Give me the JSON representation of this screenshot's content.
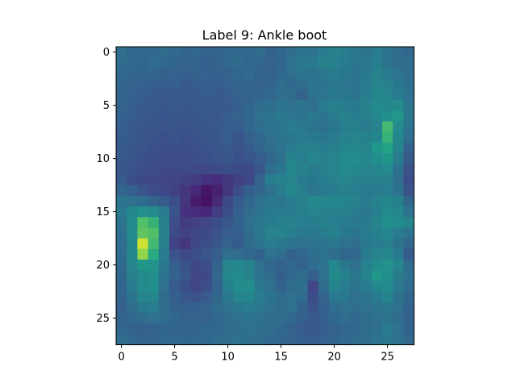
{
  "chart_data": {
    "type": "heatmap",
    "title": "Label 9: Ankle boot",
    "xlabel": "",
    "ylabel": "",
    "colormap": "viridis",
    "rows": 28,
    "cols": 28,
    "xlim": [
      -0.5,
      27.5
    ],
    "ylim": [
      27.5,
      -0.5
    ],
    "x_ticks": [
      0,
      5,
      10,
      15,
      20,
      25
    ],
    "y_ticks": [
      0,
      5,
      10,
      15,
      20,
      25
    ],
    "x_tick_labels": [
      "0",
      "5",
      "10",
      "15",
      "20",
      "25"
    ],
    "y_tick_labels": [
      "0",
      "5",
      "10",
      "15",
      "20",
      "25"
    ],
    "grid": false,
    "value_range": [
      0,
      1
    ],
    "values": [
      [
        0.45,
        0.42,
        0.43,
        0.42,
        0.44,
        0.43,
        0.41,
        0.42,
        0.4,
        0.41,
        0.42,
        0.43,
        0.42,
        0.44,
        0.4,
        0.42,
        0.45,
        0.48,
        0.47,
        0.52,
        0.55,
        0.53,
        0.5,
        0.48,
        0.52,
        0.47,
        0.44,
        0.43
      ],
      [
        0.44,
        0.43,
        0.42,
        0.44,
        0.43,
        0.41,
        0.4,
        0.41,
        0.38,
        0.4,
        0.42,
        0.44,
        0.43,
        0.42,
        0.39,
        0.41,
        0.47,
        0.5,
        0.51,
        0.55,
        0.54,
        0.52,
        0.49,
        0.5,
        0.53,
        0.48,
        0.45,
        0.44
      ],
      [
        0.43,
        0.42,
        0.41,
        0.42,
        0.4,
        0.39,
        0.38,
        0.4,
        0.39,
        0.38,
        0.4,
        0.43,
        0.44,
        0.41,
        0.4,
        0.43,
        0.46,
        0.49,
        0.48,
        0.5,
        0.52,
        0.5,
        0.48,
        0.51,
        0.55,
        0.52,
        0.47,
        0.45
      ],
      [
        0.42,
        0.4,
        0.39,
        0.38,
        0.37,
        0.38,
        0.36,
        0.37,
        0.38,
        0.37,
        0.39,
        0.41,
        0.42,
        0.4,
        0.41,
        0.44,
        0.42,
        0.45,
        0.48,
        0.47,
        0.5,
        0.49,
        0.47,
        0.52,
        0.56,
        0.55,
        0.5,
        0.46
      ],
      [
        0.41,
        0.39,
        0.37,
        0.36,
        0.35,
        0.36,
        0.35,
        0.36,
        0.37,
        0.36,
        0.37,
        0.4,
        0.4,
        0.42,
        0.43,
        0.45,
        0.44,
        0.4,
        0.47,
        0.49,
        0.51,
        0.5,
        0.48,
        0.53,
        0.58,
        0.57,
        0.52,
        0.47
      ],
      [
        0.4,
        0.38,
        0.36,
        0.35,
        0.34,
        0.35,
        0.34,
        0.35,
        0.36,
        0.35,
        0.36,
        0.38,
        0.41,
        0.44,
        0.45,
        0.47,
        0.46,
        0.48,
        0.45,
        0.52,
        0.54,
        0.52,
        0.5,
        0.55,
        0.6,
        0.58,
        0.6,
        0.49
      ],
      [
        0.39,
        0.37,
        0.35,
        0.34,
        0.33,
        0.34,
        0.33,
        0.34,
        0.35,
        0.34,
        0.37,
        0.4,
        0.43,
        0.46,
        0.48,
        0.5,
        0.49,
        0.47,
        0.5,
        0.48,
        0.52,
        0.55,
        0.53,
        0.54,
        0.58,
        0.62,
        0.66,
        0.5
      ],
      [
        0.38,
        0.36,
        0.34,
        0.33,
        0.32,
        0.33,
        0.32,
        0.33,
        0.34,
        0.35,
        0.38,
        0.36,
        0.42,
        0.45,
        0.47,
        0.49,
        0.52,
        0.5,
        0.48,
        0.46,
        0.5,
        0.53,
        0.54,
        0.52,
        0.55,
        0.8,
        0.6,
        0.48
      ],
      [
        0.37,
        0.35,
        0.33,
        0.32,
        0.31,
        0.32,
        0.31,
        0.32,
        0.33,
        0.34,
        0.37,
        0.33,
        0.4,
        0.43,
        0.46,
        0.48,
        0.5,
        0.52,
        0.5,
        0.49,
        0.52,
        0.55,
        0.56,
        0.54,
        0.57,
        0.78,
        0.58,
        0.46
      ],
      [
        0.36,
        0.34,
        0.32,
        0.31,
        0.3,
        0.3,
        0.3,
        0.31,
        0.32,
        0.33,
        0.35,
        0.32,
        0.36,
        0.41,
        0.44,
        0.47,
        0.52,
        0.54,
        0.55,
        0.53,
        0.54,
        0.57,
        0.58,
        0.56,
        0.66,
        0.72,
        0.56,
        0.4
      ],
      [
        0.35,
        0.33,
        0.31,
        0.3,
        0.29,
        0.29,
        0.29,
        0.3,
        0.31,
        0.32,
        0.34,
        0.31,
        0.33,
        0.36,
        0.42,
        0.46,
        0.56,
        0.53,
        0.57,
        0.55,
        0.56,
        0.59,
        0.6,
        0.58,
        0.62,
        0.66,
        0.52,
        0.36
      ],
      [
        0.34,
        0.32,
        0.3,
        0.29,
        0.28,
        0.28,
        0.28,
        0.28,
        0.28,
        0.29,
        0.3,
        0.29,
        0.28,
        0.34,
        0.45,
        0.49,
        0.58,
        0.55,
        0.52,
        0.54,
        0.57,
        0.6,
        0.58,
        0.56,
        0.58,
        0.6,
        0.47,
        0.32
      ],
      [
        0.36,
        0.3,
        0.28,
        0.27,
        0.26,
        0.25,
        0.24,
        0.22,
        0.18,
        0.16,
        0.2,
        0.24,
        0.27,
        0.4,
        0.53,
        0.55,
        0.56,
        0.52,
        0.5,
        0.53,
        0.55,
        0.57,
        0.55,
        0.54,
        0.55,
        0.55,
        0.45,
        0.3
      ],
      [
        0.42,
        0.38,
        0.33,
        0.3,
        0.27,
        0.24,
        0.2,
        0.14,
        0.08,
        0.12,
        0.2,
        0.3,
        0.38,
        0.42,
        0.46,
        0.52,
        0.58,
        0.53,
        0.49,
        0.51,
        0.52,
        0.54,
        0.53,
        0.51,
        0.52,
        0.53,
        0.47,
        0.33
      ],
      [
        0.48,
        0.46,
        0.44,
        0.4,
        0.36,
        0.3,
        0.2,
        0.1,
        0.06,
        0.15,
        0.27,
        0.36,
        0.42,
        0.46,
        0.5,
        0.49,
        0.53,
        0.55,
        0.58,
        0.58,
        0.58,
        0.57,
        0.55,
        0.52,
        0.55,
        0.58,
        0.54,
        0.42
      ],
      [
        0.5,
        0.58,
        0.62,
        0.6,
        0.52,
        0.32,
        0.18,
        0.16,
        0.14,
        0.22,
        0.3,
        0.38,
        0.44,
        0.48,
        0.51,
        0.52,
        0.52,
        0.54,
        0.56,
        0.54,
        0.55,
        0.54,
        0.52,
        0.5,
        0.54,
        0.6,
        0.58,
        0.48
      ],
      [
        0.47,
        0.6,
        0.82,
        0.78,
        0.55,
        0.3,
        0.22,
        0.24,
        0.26,
        0.3,
        0.34,
        0.4,
        0.46,
        0.5,
        0.52,
        0.54,
        0.55,
        0.53,
        0.52,
        0.54,
        0.53,
        0.52,
        0.5,
        0.51,
        0.56,
        0.62,
        0.6,
        0.56
      ],
      [
        0.46,
        0.6,
        0.84,
        0.82,
        0.55,
        0.28,
        0.24,
        0.26,
        0.28,
        0.32,
        0.36,
        0.38,
        0.44,
        0.5,
        0.55,
        0.56,
        0.53,
        0.5,
        0.5,
        0.52,
        0.54,
        0.5,
        0.48,
        0.52,
        0.54,
        0.58,
        0.52,
        0.48
      ],
      [
        0.45,
        0.58,
        0.96,
        0.8,
        0.54,
        0.24,
        0.2,
        0.27,
        0.3,
        0.34,
        0.4,
        0.36,
        0.44,
        0.48,
        0.52,
        0.5,
        0.48,
        0.46,
        0.47,
        0.48,
        0.5,
        0.46,
        0.44,
        0.5,
        0.52,
        0.54,
        0.48,
        0.42
      ],
      [
        0.44,
        0.58,
        0.9,
        0.76,
        0.52,
        0.32,
        0.28,
        0.3,
        0.34,
        0.38,
        0.46,
        0.44,
        0.42,
        0.4,
        0.46,
        0.44,
        0.4,
        0.42,
        0.45,
        0.47,
        0.44,
        0.42,
        0.43,
        0.52,
        0.56,
        0.58,
        0.52,
        0.36
      ],
      [
        0.43,
        0.56,
        0.66,
        0.64,
        0.5,
        0.38,
        0.32,
        0.28,
        0.3,
        0.4,
        0.56,
        0.58,
        0.55,
        0.46,
        0.42,
        0.4,
        0.42,
        0.4,
        0.44,
        0.47,
        0.58,
        0.5,
        0.46,
        0.54,
        0.6,
        0.64,
        0.56,
        0.44
      ],
      [
        0.42,
        0.54,
        0.6,
        0.62,
        0.48,
        0.4,
        0.34,
        0.26,
        0.28,
        0.42,
        0.58,
        0.6,
        0.56,
        0.48,
        0.44,
        0.38,
        0.42,
        0.44,
        0.38,
        0.46,
        0.6,
        0.54,
        0.5,
        0.56,
        0.66,
        0.62,
        0.52,
        0.46
      ],
      [
        0.41,
        0.52,
        0.6,
        0.62,
        0.46,
        0.36,
        0.3,
        0.26,
        0.3,
        0.4,
        0.54,
        0.6,
        0.62,
        0.5,
        0.46,
        0.4,
        0.44,
        0.46,
        0.26,
        0.44,
        0.56,
        0.52,
        0.48,
        0.52,
        0.58,
        0.6,
        0.5,
        0.44
      ],
      [
        0.4,
        0.48,
        0.56,
        0.58,
        0.44,
        0.38,
        0.34,
        0.32,
        0.36,
        0.42,
        0.5,
        0.56,
        0.58,
        0.52,
        0.48,
        0.44,
        0.46,
        0.44,
        0.3,
        0.4,
        0.5,
        0.5,
        0.46,
        0.48,
        0.52,
        0.56,
        0.48,
        0.42
      ],
      [
        0.38,
        0.44,
        0.5,
        0.52,
        0.45,
        0.4,
        0.38,
        0.38,
        0.4,
        0.44,
        0.46,
        0.5,
        0.52,
        0.5,
        0.46,
        0.44,
        0.46,
        0.4,
        0.32,
        0.38,
        0.44,
        0.46,
        0.44,
        0.46,
        0.48,
        0.5,
        0.46,
        0.4
      ],
      [
        0.4,
        0.42,
        0.44,
        0.46,
        0.44,
        0.42,
        0.4,
        0.4,
        0.4,
        0.42,
        0.44,
        0.46,
        0.48,
        0.46,
        0.44,
        0.44,
        0.42,
        0.38,
        0.36,
        0.38,
        0.42,
        0.44,
        0.42,
        0.44,
        0.46,
        0.48,
        0.44,
        0.4
      ],
      [
        0.42,
        0.4,
        0.38,
        0.4,
        0.42,
        0.41,
        0.4,
        0.41,
        0.42,
        0.43,
        0.44,
        0.45,
        0.46,
        0.45,
        0.44,
        0.43,
        0.4,
        0.36,
        0.35,
        0.37,
        0.4,
        0.42,
        0.43,
        0.44,
        0.46,
        0.52,
        0.46,
        0.41
      ],
      [
        0.44,
        0.42,
        0.4,
        0.41,
        0.42,
        0.43,
        0.42,
        0.42,
        0.43,
        0.44,
        0.45,
        0.46,
        0.45,
        0.44,
        0.43,
        0.42,
        0.4,
        0.38,
        0.37,
        0.39,
        0.41,
        0.43,
        0.44,
        0.45,
        0.47,
        0.5,
        0.46,
        0.43
      ]
    ]
  }
}
